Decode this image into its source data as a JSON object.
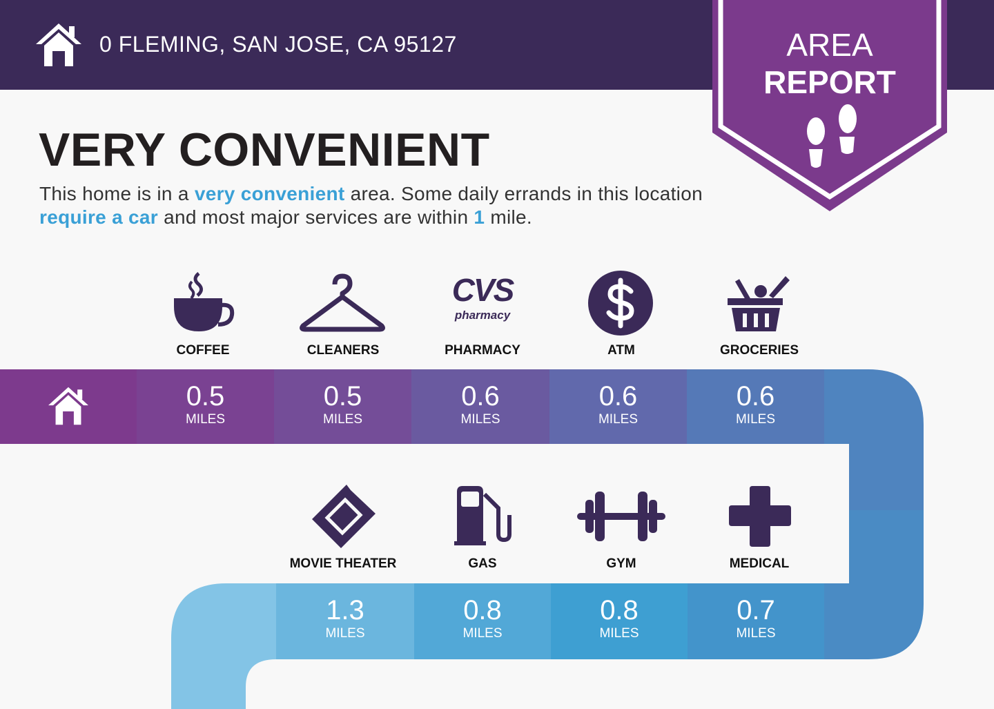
{
  "header": {
    "address": "0 FLEMING, SAN JOSE, CA 95127",
    "home_icon": "house-icon",
    "badge_line1": "AREA",
    "badge_line2": "REPORT",
    "badge_icon": "footprints-icon"
  },
  "summary": {
    "title": "VERY CONVENIENT",
    "desc": {
      "p1": "This home is in a ",
      "h1": "very convenient",
      "p2": " area. Some daily errands in this location ",
      "h2": "require a car",
      "p3": " and most major services are within ",
      "h3": "1",
      "p4": " mile."
    }
  },
  "colors": {
    "header": "#3b2a58",
    "badge": "#7b3a8c",
    "highlight": "#3aa0d6",
    "icon": "#3b2a58"
  },
  "row1": [
    {
      "label": "COFFEE",
      "value": "0.5",
      "unit": "MILES",
      "icon": "coffee-cup-icon"
    },
    {
      "label": "CLEANERS",
      "value": "0.5",
      "unit": "MILES",
      "icon": "hanger-icon"
    },
    {
      "label": "PHARMACY",
      "value": "0.6",
      "unit": "MILES",
      "icon": "cvs-pharmacy-logo",
      "logo_text": "CVS",
      "logo_sub": "pharmacy"
    },
    {
      "label": "ATM",
      "value": "0.6",
      "unit": "MILES",
      "icon": "dollar-icon"
    },
    {
      "label": "GROCERIES",
      "value": "0.6",
      "unit": "MILES",
      "icon": "grocery-basket-icon"
    }
  ],
  "row2": [
    {
      "label": "MOVIE THEATER",
      "value": "1.3",
      "unit": "MILES",
      "icon": "ticket-icon"
    },
    {
      "label": "GAS",
      "value": "0.8",
      "unit": "MILES",
      "icon": "gas-pump-icon"
    },
    {
      "label": "GYM",
      "value": "0.8",
      "unit": "MILES",
      "icon": "dumbbell-icon"
    },
    {
      "label": "MEDICAL",
      "value": "0.7",
      "unit": "MILES",
      "icon": "medical-cross-icon"
    }
  ]
}
